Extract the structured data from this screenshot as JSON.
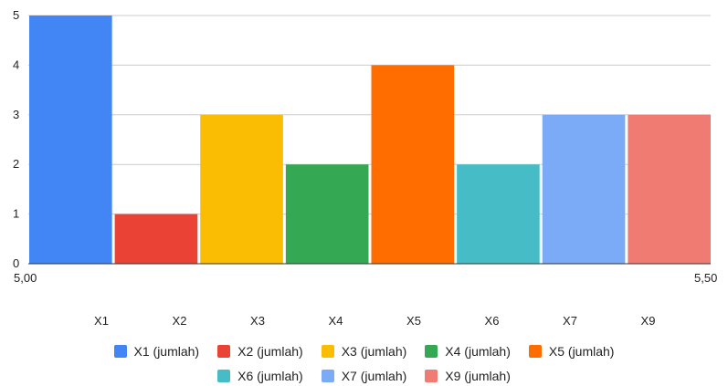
{
  "chart_data": {
    "type": "bar",
    "title": "",
    "xlabel": "",
    "ylabel": "",
    "ylim": [
      0,
      5
    ],
    "yticks": [
      "0",
      "1",
      "2",
      "3",
      "4",
      "5"
    ],
    "xtick_left": "5,00",
    "xtick_right": "5,50",
    "categories": [
      "X1",
      "X2",
      "X3",
      "X4",
      "X5",
      "X6",
      "X7",
      "X9"
    ],
    "series": [
      {
        "name": "X1 (jumlah)",
        "value": 5,
        "color": "#4285f4"
      },
      {
        "name": "X2 (jumlah)",
        "value": 1,
        "color": "#ea4335"
      },
      {
        "name": "X3 (jumlah)",
        "value": 3,
        "color": "#fbbc04"
      },
      {
        "name": "X4 (jumlah)",
        "value": 2,
        "color": "#34a853"
      },
      {
        "name": "X5 (jumlah)",
        "value": 4,
        "color": "#ff6d01"
      },
      {
        "name": "X6 (jumlah)",
        "value": 2,
        "color": "#46bdc6"
      },
      {
        "name": "X7 (jumlah)",
        "value": 3,
        "color": "#7baaf7"
      },
      {
        "name": "X9 (jumlah)",
        "value": 3,
        "color": "#f07b72"
      }
    ],
    "grid": true,
    "legend_position": "bottom"
  }
}
